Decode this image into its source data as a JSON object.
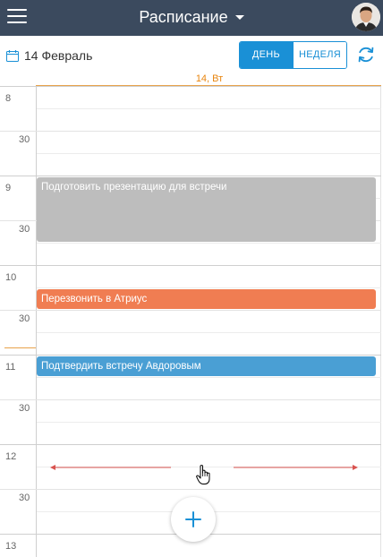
{
  "header": {
    "title": "Расписание",
    "menu_icon": "hamburger-menu-icon",
    "title_caret_icon": "chevron-down-icon",
    "avatar_icon": "user-avatar"
  },
  "toolbar": {
    "date_label": "14 Февраль",
    "calendar_icon": "calendar-icon",
    "views": [
      {
        "label": "ДЕНЬ",
        "active": true
      },
      {
        "label": "НЕДЕЛЯ",
        "active": false
      }
    ],
    "refresh_icon": "refresh-icon"
  },
  "day": {
    "label": "14, Вт"
  },
  "time_labels": {
    "h8": "8",
    "h9": "9",
    "h10": "10",
    "h11": "11",
    "h12": "12",
    "h13": "13",
    "half": "30"
  },
  "events": [
    {
      "title": "Подготовить презентацию для встречи",
      "color": "#bdbdbd"
    },
    {
      "title": "Перезвонить в Атриус",
      "color": "#f07d52"
    },
    {
      "title": "Подтвердить встречу Авдоровым",
      "color": "#4a9fd4"
    }
  ],
  "colors": {
    "header_bg": "#3b4a5e",
    "accent": "#1a90d6",
    "today": "#e8850f"
  },
  "fab": {
    "icon": "plus-icon"
  },
  "resize_icon": "resize-arrows-icon",
  "cursor_icon": "hand-cursor-icon"
}
